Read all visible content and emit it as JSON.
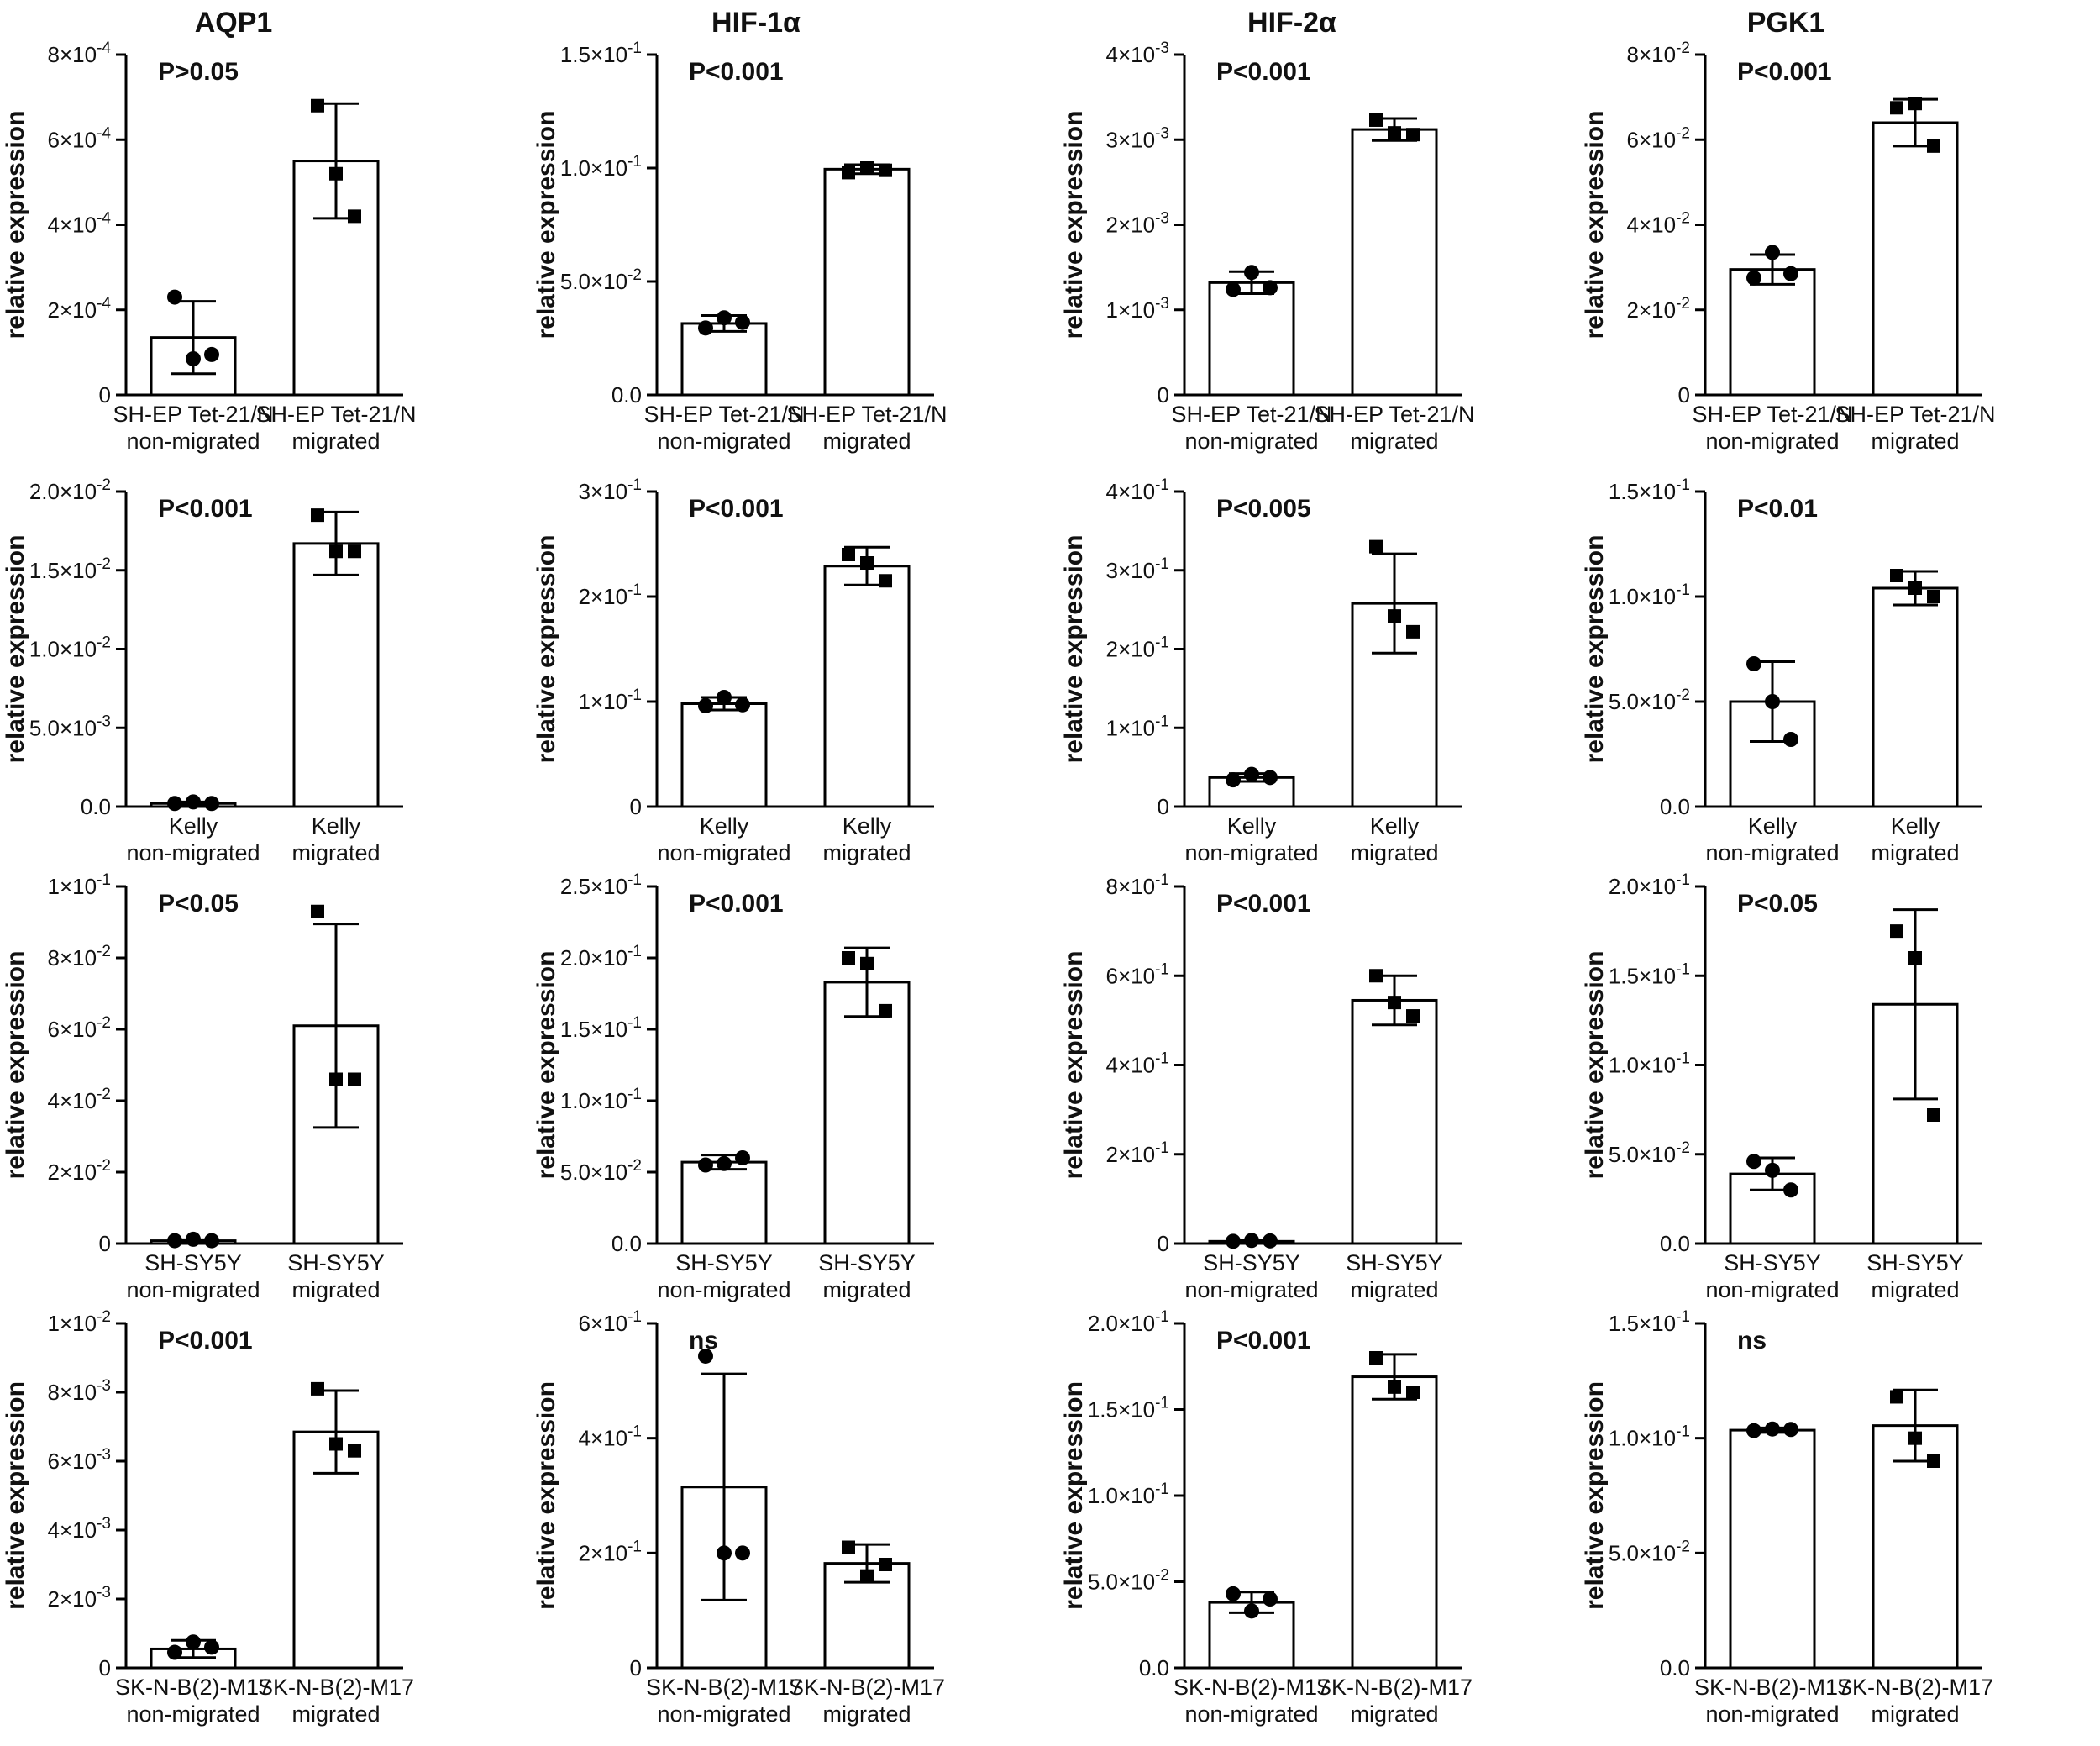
{
  "figure": {
    "column_titles": [
      "AQP1",
      "HIF-1α",
      "HIF-2α",
      "PGK1"
    ]
  },
  "chart_data": [
    {
      "type": "bar",
      "gene": "AQP1",
      "ylabel": "relative expression",
      "annotation": "P>0.05",
      "categories": [
        "SH-EP Tet-21/N\nnon-migrated",
        "SH-EP Tet-21/N\nmigrated"
      ],
      "yticks": [
        0,
        0.0002,
        0.0004,
        0.0006,
        0.0008
      ],
      "ytick_labels": [
        "0",
        "2×10-4",
        "4×10-4",
        "6×10-4",
        "8×10-4"
      ],
      "ylim": [
        0,
        0.0008
      ],
      "values": [
        0.000135,
        0.00055
      ],
      "errors": [
        8.5e-05,
        0.000135
      ],
      "points": [
        [
          0.00023,
          8.5e-05,
          9.5e-05
        ],
        [
          0.00068,
          0.00052,
          0.00042
        ]
      ],
      "marker": [
        "circle",
        "square"
      ]
    },
    {
      "type": "bar",
      "gene": "HIF-1α",
      "ylabel": "relative expression",
      "annotation": "P<0.001",
      "categories": [
        "SH-EP Tet-21/N\nnon-migrated",
        "SH-EP Tet-21/N\nmigrated"
      ],
      "yticks": [
        0,
        0.05,
        0.1,
        0.15
      ],
      "ytick_labels": [
        "0.0",
        "5.0×10-2",
        "1.0×10-1",
        "1.5×10-1"
      ],
      "ylim": [
        0,
        0.15
      ],
      "values": [
        0.0315,
        0.0995
      ],
      "errors": [
        0.0035,
        0.002
      ],
      "points": [
        [
          0.0295,
          0.034,
          0.032
        ],
        [
          0.098,
          0.1,
          0.099
        ]
      ],
      "marker": [
        "circle",
        "square"
      ]
    },
    {
      "type": "bar",
      "gene": "HIF-2α",
      "ylabel": "relative expression",
      "annotation": "P<0.001",
      "categories": [
        "SH-EP Tet-21/N\nnon-migrated",
        "SH-EP Tet-21/N\nmigrated"
      ],
      "yticks": [
        0,
        0.001,
        0.002,
        0.003,
        0.004
      ],
      "ytick_labels": [
        "0",
        "1×10-3",
        "2×10-3",
        "3×10-3",
        "4×10-3"
      ],
      "ylim": [
        0,
        0.004
      ],
      "values": [
        0.00132,
        0.00312
      ],
      "errors": [
        0.00013,
        0.00013
      ],
      "points": [
        [
          0.00124,
          0.00144,
          0.00126
        ],
        [
          0.00323,
          0.00308,
          0.00306
        ]
      ],
      "marker": [
        "circle",
        "square"
      ]
    },
    {
      "type": "bar",
      "gene": "PGK1",
      "ylabel": "relative expression",
      "annotation": "P<0.001",
      "categories": [
        "SH-EP Tet-21/N\nnon-migrated",
        "SH-EP Tet-21/N\nmigrated"
      ],
      "yticks": [
        0,
        0.02,
        0.04,
        0.06,
        0.08
      ],
      "ytick_labels": [
        "0",
        "2×10-2",
        "4×10-2",
        "6×10-2",
        "8×10-2"
      ],
      "ylim": [
        0,
        0.08
      ],
      "values": [
        0.0295,
        0.064
      ],
      "errors": [
        0.0035,
        0.0055
      ],
      "points": [
        [
          0.0275,
          0.0335,
          0.0285
        ],
        [
          0.0675,
          0.0685,
          0.0585
        ]
      ],
      "marker": [
        "circle",
        "square"
      ]
    },
    {
      "type": "bar",
      "gene": "AQP1",
      "ylabel": "relative expression",
      "annotation": "P<0.001",
      "categories": [
        "Kelly\nnon-migrated",
        "Kelly\nmigrated"
      ],
      "yticks": [
        0,
        0.005,
        0.01,
        0.015,
        0.02
      ],
      "ytick_labels": [
        "0.0",
        "5.0×10-3",
        "1.0×10-2",
        "1.5×10-2",
        "2.0×10-2"
      ],
      "ylim": [
        0,
        0.02
      ],
      "values": [
        0.0002,
        0.0167
      ],
      "errors": [
        0.0001,
        0.002
      ],
      "points": [
        [
          0.0002,
          0.0003,
          0.0002
        ],
        [
          0.0185,
          0.0162,
          0.0162
        ]
      ],
      "marker": [
        "circle",
        "square"
      ]
    },
    {
      "type": "bar",
      "gene": "HIF-1α",
      "ylabel": "relative expression",
      "annotation": "P<0.001",
      "categories": [
        "Kelly\nnon-migrated",
        "Kelly\nmigrated"
      ],
      "yticks": [
        0,
        0.1,
        0.2,
        0.3
      ],
      "ytick_labels": [
        "0",
        "1×10-1",
        "2×10-1",
        "3×10-1"
      ],
      "ylim": [
        0,
        0.3
      ],
      "values": [
        0.098,
        0.229
      ],
      "errors": [
        0.006,
        0.018
      ],
      "points": [
        [
          0.096,
          0.104,
          0.097
        ],
        [
          0.24,
          0.232,
          0.215
        ]
      ],
      "marker": [
        "circle",
        "square"
      ]
    },
    {
      "type": "bar",
      "gene": "HIF-2α",
      "ylabel": "relative expression",
      "annotation": "P<0.005",
      "categories": [
        "Kelly\nnon-migrated",
        "Kelly\nmigrated"
      ],
      "yticks": [
        0,
        0.1,
        0.2,
        0.3,
        0.4
      ],
      "ytick_labels": [
        "0",
        "1×10-1",
        "2×10-1",
        "3×10-1",
        "4×10-1"
      ],
      "ylim": [
        0,
        0.4
      ],
      "values": [
        0.037,
        0.258
      ],
      "errors": [
        0.005,
        0.063
      ],
      "points": [
        [
          0.034,
          0.041,
          0.037
        ],
        [
          0.33,
          0.242,
          0.222
        ]
      ],
      "marker": [
        "circle",
        "square"
      ]
    },
    {
      "type": "bar",
      "gene": "PGK1",
      "ylabel": "relative expression",
      "annotation": "P<0.01",
      "categories": [
        "Kelly\nnon-migrated",
        "Kelly\nmigrated"
      ],
      "yticks": [
        0,
        0.05,
        0.1,
        0.15
      ],
      "ytick_labels": [
        "0.0",
        "5.0×10-2",
        "1.0×10-1",
        "1.5×10-1"
      ],
      "ylim": [
        0,
        0.15
      ],
      "values": [
        0.05,
        0.104
      ],
      "errors": [
        0.019,
        0.008
      ],
      "points": [
        [
          0.068,
          0.05,
          0.032
        ],
        [
          0.11,
          0.104,
          0.1
        ]
      ],
      "marker": [
        "circle",
        "square"
      ]
    },
    {
      "type": "bar",
      "gene": "AQP1",
      "ylabel": "relative expression",
      "annotation": "P<0.05",
      "categories": [
        "SH-SY5Y\nnon-migrated",
        "SH-SY5Y\nmigrated"
      ],
      "yticks": [
        0,
        0.02,
        0.04,
        0.06,
        0.08,
        0.1
      ],
      "ytick_labels": [
        "0",
        "2×10-2",
        "4×10-2",
        "6×10-2",
        "8×10-2",
        "1×10-1"
      ],
      "ylim": [
        0,
        0.1
      ],
      "values": [
        0.0008,
        0.061
      ],
      "errors": [
        0.0003,
        0.0285
      ],
      "points": [
        [
          0.0008,
          0.0012,
          0.0008
        ],
        [
          0.093,
          0.046,
          0.046
        ]
      ],
      "marker": [
        "circle",
        "square"
      ]
    },
    {
      "type": "bar",
      "gene": "HIF-1α",
      "ylabel": "relative expression",
      "annotation": "P<0.001",
      "categories": [
        "SH-SY5Y\nnon-migrated",
        "SH-SY5Y\nmigrated"
      ],
      "yticks": [
        0,
        0.05,
        0.1,
        0.15,
        0.2,
        0.25
      ],
      "ytick_labels": [
        "0.0",
        "5.0×10-2",
        "1.0×10-1",
        "1.5×10-1",
        "2.0×10-1",
        "2.5×10-1"
      ],
      "ylim": [
        0,
        0.25
      ],
      "values": [
        0.057,
        0.183
      ],
      "errors": [
        0.005,
        0.024
      ],
      "points": [
        [
          0.055,
          0.056,
          0.06
        ],
        [
          0.2,
          0.196,
          0.163
        ]
      ],
      "marker": [
        "circle",
        "square"
      ]
    },
    {
      "type": "bar",
      "gene": "HIF-2α",
      "ylabel": "relative expression",
      "annotation": "P<0.001",
      "categories": [
        "SH-SY5Y\nnon-migrated",
        "SH-SY5Y\nmigrated"
      ],
      "yticks": [
        0,
        0.2,
        0.4,
        0.6,
        0.8
      ],
      "ytick_labels": [
        "0",
        "2×10-1",
        "4×10-1",
        "6×10-1",
        "8×10-1"
      ],
      "ylim": [
        0,
        0.8
      ],
      "values": [
        0.005,
        0.545
      ],
      "errors": [
        0.002,
        0.055
      ],
      "points": [
        [
          0.005,
          0.007,
          0.006
        ],
        [
          0.6,
          0.54,
          0.51
        ]
      ],
      "marker": [
        "circle",
        "square"
      ]
    },
    {
      "type": "bar",
      "gene": "PGK1",
      "ylabel": "relative expression",
      "annotation": "P<0.05",
      "categories": [
        "SH-SY5Y\nnon-migrated",
        "SH-SY5Y\nmigrated"
      ],
      "yticks": [
        0,
        0.05,
        0.1,
        0.15,
        0.2
      ],
      "ytick_labels": [
        "0.0",
        "5.0×10-2",
        "1.0×10-1",
        "1.5×10-1",
        "2.0×10-1"
      ],
      "ylim": [
        0,
        0.2
      ],
      "values": [
        0.039,
        0.134
      ],
      "errors": [
        0.009,
        0.053
      ],
      "points": [
        [
          0.046,
          0.041,
          0.03
        ],
        [
          0.175,
          0.16,
          0.072
        ]
      ],
      "marker": [
        "circle",
        "square"
      ]
    },
    {
      "type": "bar",
      "gene": "AQP1",
      "ylabel": "relative expression",
      "annotation": "P<0.001",
      "categories": [
        "SK-N-B(2)-M17\nnon-migrated",
        "SK-N-B(2)-M17\nmigrated"
      ],
      "yticks": [
        0,
        0.002,
        0.004,
        0.006,
        0.008,
        0.01
      ],
      "ytick_labels": [
        "0",
        "2×10-3",
        "4×10-3",
        "6×10-3",
        "8×10-3",
        "1×10-2"
      ],
      "ylim": [
        0,
        0.01
      ],
      "values": [
        0.00055,
        0.00685
      ],
      "errors": [
        0.00025,
        0.0012
      ],
      "points": [
        [
          0.00045,
          0.00075,
          0.0006
        ],
        [
          0.0081,
          0.0065,
          0.0063
        ]
      ],
      "marker": [
        "circle",
        "square"
      ]
    },
    {
      "type": "bar",
      "gene": "HIF-1α",
      "ylabel": "relative expression",
      "annotation": "ns",
      "categories": [
        "SK-N-B(2)-M17\nnon-migrated",
        "SK-N-B(2)-M17\nmigrated"
      ],
      "yticks": [
        0,
        0.2,
        0.4,
        0.6
      ],
      "ytick_labels": [
        "0",
        "2×10-1",
        "4×10-1",
        "6×10-1"
      ],
      "ylim": [
        0,
        0.6
      ],
      "values": [
        0.315,
        0.182
      ],
      "errors": [
        0.197,
        0.033
      ],
      "points": [
        [
          0.543,
          0.2,
          0.2
        ],
        [
          0.21,
          0.16,
          0.18
        ]
      ],
      "marker": [
        "circle",
        "square"
      ]
    },
    {
      "type": "bar",
      "gene": "HIF-2α",
      "ylabel": "relative expression",
      "annotation": "P<0.001",
      "categories": [
        "SK-N-B(2)-M17\nnon-migrated",
        "SK-N-B(2)-M17\nmigrated"
      ],
      "yticks": [
        0,
        0.05,
        0.1,
        0.15,
        0.2
      ],
      "ytick_labels": [
        "0.0",
        "5.0×10-2",
        "1.0×10-1",
        "1.5×10-1",
        "2.0×10-1"
      ],
      "ylim": [
        0,
        0.2
      ],
      "values": [
        0.038,
        0.169
      ],
      "errors": [
        0.006,
        0.013
      ],
      "points": [
        [
          0.043,
          0.033,
          0.04
        ],
        [
          0.18,
          0.163,
          0.16
        ]
      ],
      "marker": [
        "circle",
        "square"
      ]
    },
    {
      "type": "bar",
      "gene": "PGK1",
      "ylabel": "relative expression",
      "annotation": "ns",
      "categories": [
        "SK-N-B(2)-M17\nnon-migrated",
        "SK-N-B(2)-M17\nmigrated"
      ],
      "yticks": [
        0,
        0.05,
        0.1,
        0.15
      ],
      "ytick_labels": [
        "0.0",
        "5.0×10-2",
        "1.0×10-1",
        "1.5×10-1"
      ],
      "ylim": [
        0,
        0.15
      ],
      "values": [
        0.1035,
        0.1055
      ],
      "errors": [
        0.001,
        0.0155
      ],
      "points": [
        [
          0.1033,
          0.104,
          0.1038
        ],
        [
          0.118,
          0.1,
          0.09
        ]
      ],
      "marker": [
        "circle",
        "square"
      ]
    }
  ]
}
